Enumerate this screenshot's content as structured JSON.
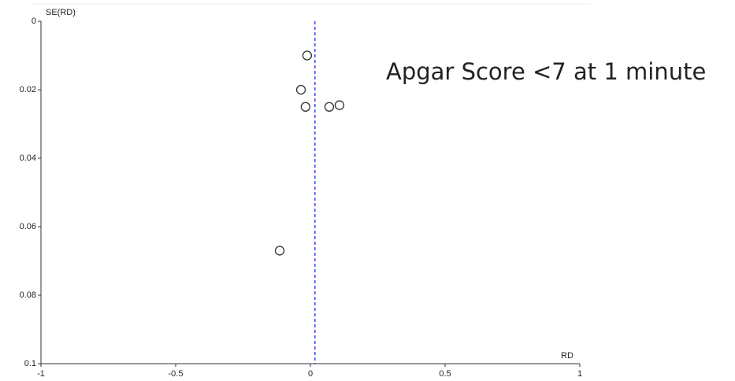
{
  "chart_data": {
    "type": "scatter",
    "title": "Apgar Score <7 at 1 minute",
    "x_label": "RD",
    "y_label": "SE(RD)",
    "x": [
      -0.012,
      -0.035,
      -0.018,
      0.07,
      0.108,
      -0.114
    ],
    "values": [
      0.01,
      0.02,
      0.025,
      0.025,
      0.0245,
      0.067
    ],
    "color": "#333333",
    "xlim": [
      -1,
      1
    ],
    "xticks": [
      -1,
      -0.5,
      0,
      0.5,
      1
    ],
    "ylim": [
      0,
      0.1
    ],
    "yticks": [
      0,
      0.02,
      0.04,
      0.06,
      0.08,
      0.1
    ],
    "y_inverted": true,
    "reference_line_x": 0.017,
    "reference_color": "#2233dd"
  }
}
